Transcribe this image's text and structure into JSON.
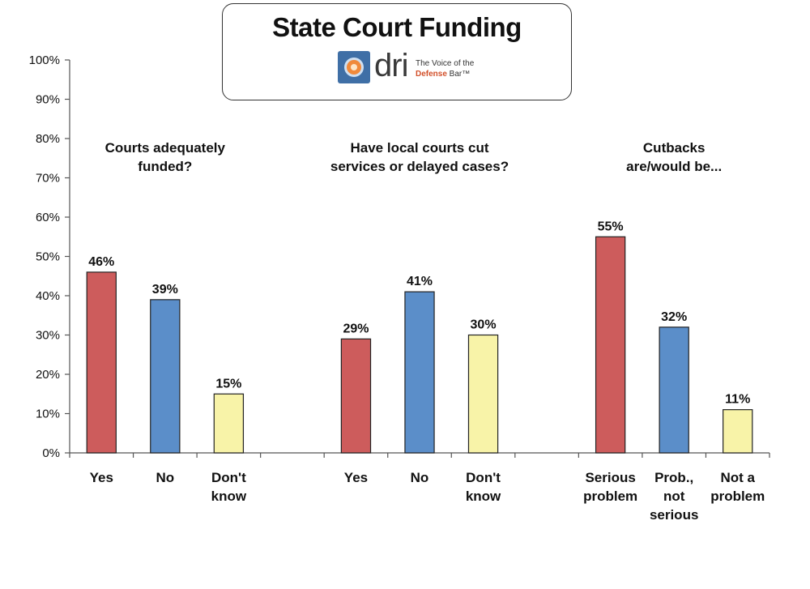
{
  "chart_data": {
    "type": "bar",
    "title": "State Court Funding",
    "ylim": [
      0,
      100
    ],
    "yticks": [
      "0%",
      "10%",
      "20%",
      "30%",
      "40%",
      "50%",
      "60%",
      "70%",
      "80%",
      "90%",
      "100%"
    ],
    "grid": false,
    "colors": {
      "red": "#cd5c5c",
      "blue": "#5b8ec9",
      "yellow": "#f8f3a8",
      "outline": "#222222"
    },
    "groups": [
      {
        "title": [
          "Courts adequately",
          "funded?"
        ],
        "bars": [
          {
            "category": [
              "Yes"
            ],
            "value": 46,
            "label": "46%",
            "color": "red"
          },
          {
            "category": [
              "No"
            ],
            "value": 39,
            "label": "39%",
            "color": "blue"
          },
          {
            "category": [
              "Don't",
              "know"
            ],
            "value": 15,
            "label": "15%",
            "color": "yellow"
          }
        ]
      },
      {
        "title": [
          "Have local courts cut",
          "services or delayed cases?"
        ],
        "bars": [
          {
            "category": [
              "Yes"
            ],
            "value": 29,
            "label": "29%",
            "color": "red"
          },
          {
            "category": [
              "No"
            ],
            "value": 41,
            "label": "41%",
            "color": "blue"
          },
          {
            "category": [
              "Don't",
              "know"
            ],
            "value": 30,
            "label": "30%",
            "color": "yellow"
          }
        ]
      },
      {
        "title": [
          "Cutbacks",
          "are/would be..."
        ],
        "bars": [
          {
            "category": [
              "Serious",
              "problem"
            ],
            "value": 55,
            "label": "55%",
            "color": "red"
          },
          {
            "category": [
              "Prob.,",
              "not",
              "serious"
            ],
            "value": 32,
            "label": "32%",
            "color": "blue"
          },
          {
            "category": [
              "Not a",
              "problem"
            ],
            "value": 11,
            "label": "11%",
            "color": "yellow"
          }
        ]
      }
    ]
  },
  "logo": {
    "name": "dri-logo-icon",
    "wordmark": "dri",
    "tagline_1": "The Voice of the",
    "tagline_2a": "Defense",
    "tagline_2b": " Bar™"
  }
}
